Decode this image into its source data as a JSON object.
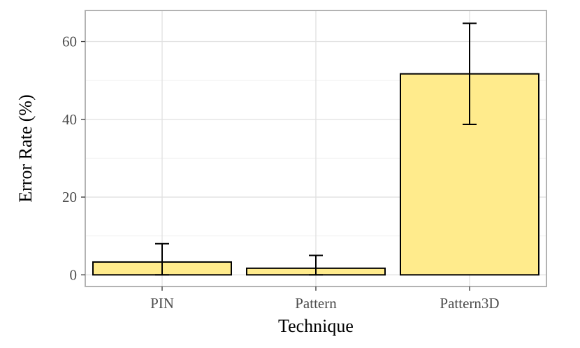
{
  "chart_data": {
    "type": "bar",
    "title": "",
    "xlabel": "Technique",
    "ylabel": "Error Rate (%)",
    "categories": [
      "PIN",
      "Pattern",
      "Pattern3D"
    ],
    "values": [
      3.3,
      1.7,
      51.7
    ],
    "error_bars": [
      {
        "low": 0,
        "high": 8.0
      },
      {
        "low": 0,
        "high": 5.0
      },
      {
        "low": 38.7,
        "high": 64.7
      }
    ],
    "ylim": [
      -3,
      68
    ],
    "y_ticks": [
      0,
      20,
      40,
      60
    ],
    "y_tick_labels": [
      "0",
      "20",
      "40",
      "60"
    ],
    "grid": true,
    "legend": "none",
    "colors": {
      "bar_fill": "#FFEB8C",
      "bar_stroke": "#000000",
      "grid_major": "#e0e0e0",
      "grid_minor": "#f0f0f0",
      "panel_border": "#b3b3b3",
      "error_bar": "#000000"
    }
  }
}
